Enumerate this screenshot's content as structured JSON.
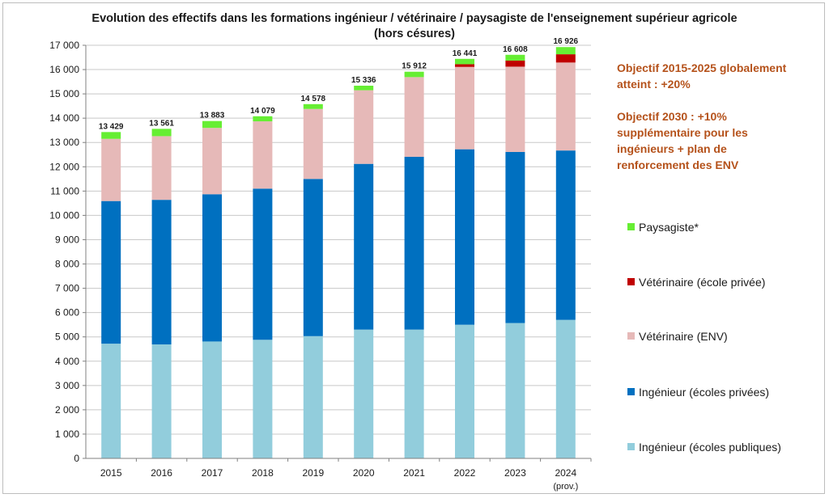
{
  "chart_data": {
    "type": "bar",
    "stacked": true,
    "title_lines": [
      "Evolution des effectifs dans les formations ingénieur / vétérinaire / paysagiste de l'enseignement supérieur agricole",
      "(hors césures)"
    ],
    "categories": [
      "2015",
      "2016",
      "2017",
      "2018",
      "2019",
      "2020",
      "2021",
      "2022",
      "2023",
      "2024"
    ],
    "category_sublabels": [
      "",
      "",
      "",
      "",
      "",
      "",
      "",
      "",
      "",
      "(prov.)"
    ],
    "series": [
      {
        "name": "Ingénieur (écoles publiques)",
        "color": "#92cddc",
        "values": [
          4720,
          4690,
          4810,
          4880,
          5030,
          5300,
          5300,
          5500,
          5570,
          5700
        ]
      },
      {
        "name": "Ingénieur (écoles privées)",
        "color": "#0070c0",
        "values": [
          5870,
          5950,
          6060,
          6220,
          6470,
          6820,
          7110,
          7220,
          7040,
          6970
        ]
      },
      {
        "name": "Vétérinaire (ENV)",
        "color": "#e6b9b8",
        "values": [
          2560,
          2620,
          2730,
          2770,
          2880,
          3030,
          3280,
          3390,
          3510,
          3620
        ]
      },
      {
        "name": "Vétérinaire (école privée)",
        "color": "#c00000",
        "values": [
          0,
          0,
          0,
          0,
          0,
          0,
          0,
          110,
          250,
          340
        ]
      },
      {
        "name": "Paysagiste*",
        "color": "#66ee33",
        "values": [
          279,
          301,
          283,
          209,
          198,
          186,
          222,
          221,
          238,
          296
        ]
      }
    ],
    "totals": [
      "13 429",
      "13 561",
      "13 883",
      "14 079",
      "14 578",
      "15 336",
      "15 912",
      "16 441",
      "16 608",
      "16 926"
    ],
    "ylim": [
      0,
      17000
    ],
    "ytick_step": 1000,
    "ytick_labels": [
      "0",
      "1 000",
      "2 000",
      "3 000",
      "4 000",
      "5 000",
      "6 000",
      "7 000",
      "8 000",
      "9 000",
      "10 000",
      "11 000",
      "12 000",
      "13 000",
      "14 000",
      "15 000",
      "16 000",
      "17 000"
    ],
    "grid": true,
    "legend_position": "right",
    "legend_order": [
      "Paysagiste*",
      "Vétérinaire (école privée)",
      "Vétérinaire (ENV)",
      "Ingénieur (écoles privées)",
      "Ingénieur (écoles publiques)"
    ],
    "annotations": [
      {
        "lines": [
          "Objectif 2015-2025 globalement",
          "atteint : +20%"
        ],
        "color": "#b5521b"
      },
      {
        "lines": [
          "Objectif 2030 : +10%",
          "supplémentaire pour les",
          "ingénieurs + plan de",
          "renforcement des ENV"
        ],
        "color": "#b5521b"
      }
    ]
  }
}
